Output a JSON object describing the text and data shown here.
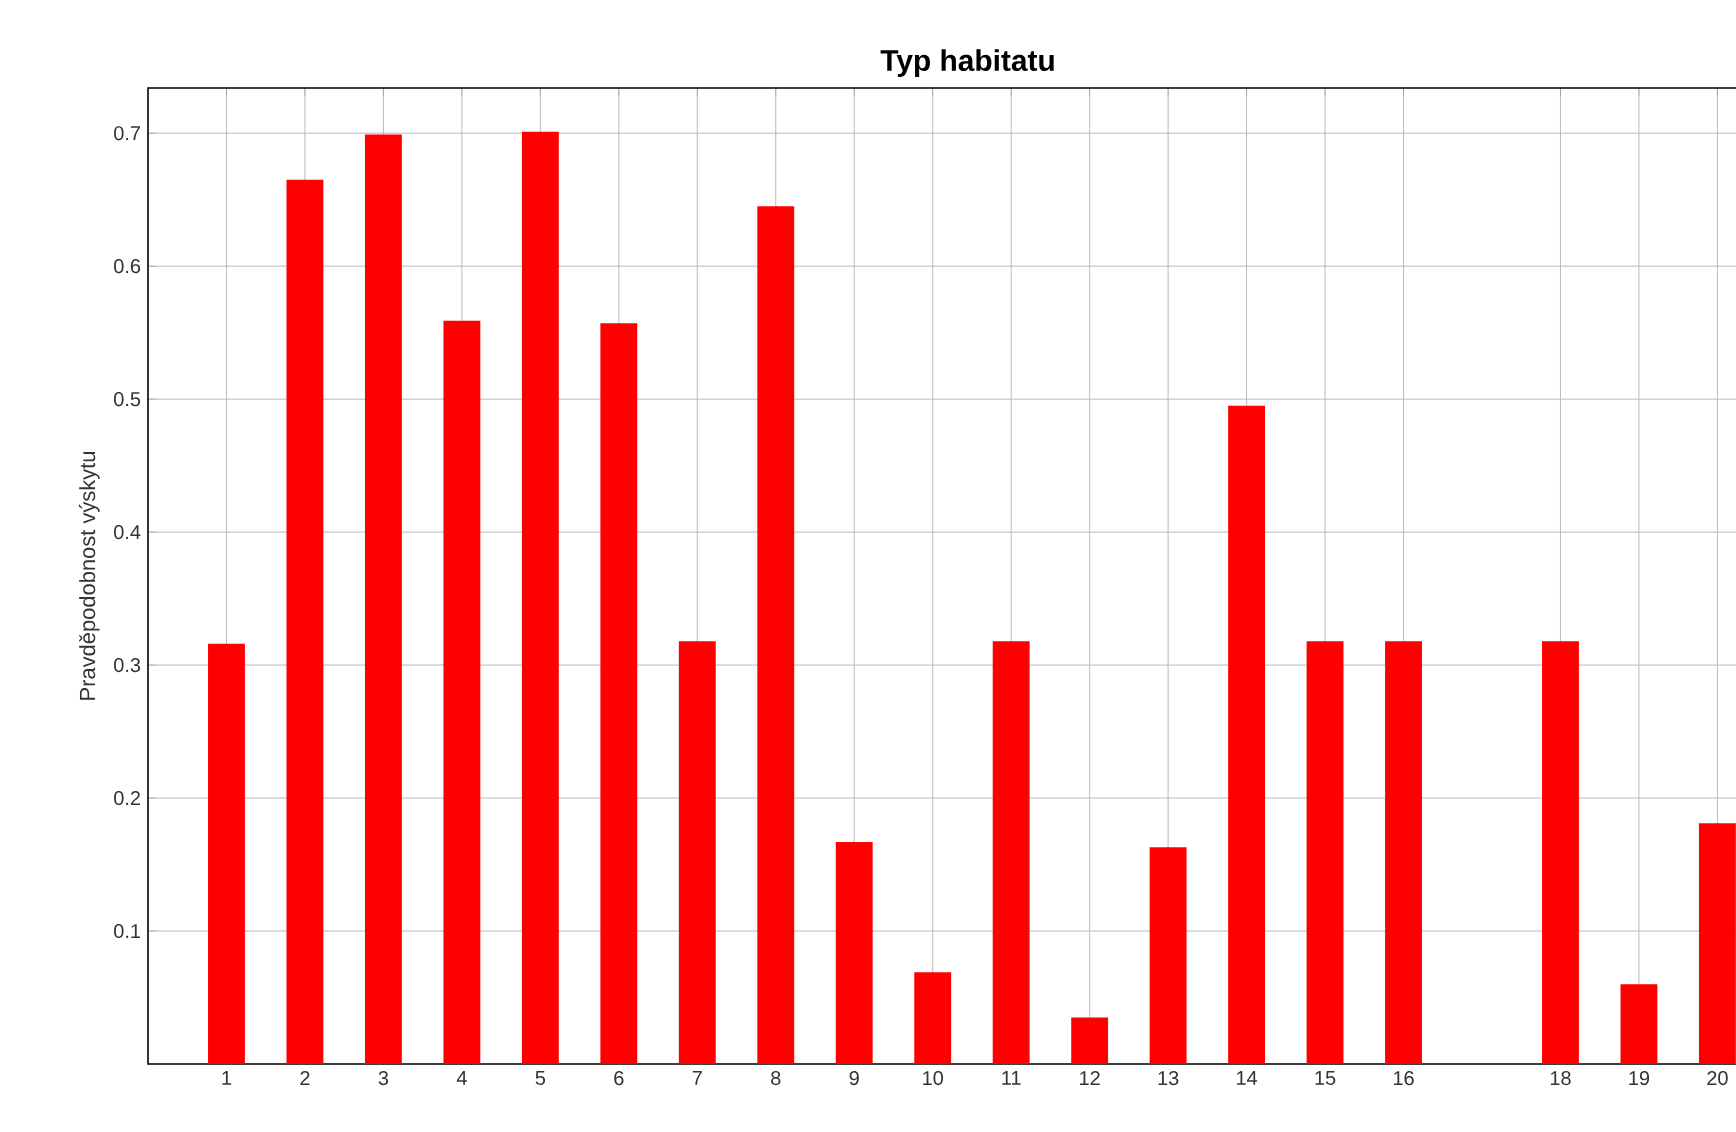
{
  "chart_data": {
    "type": "bar",
    "title": "**Typ habitatu**",
    "ylabel": "Pravděpodobnost výskytu",
    "x": [
      1,
      2,
      3,
      4,
      5,
      6,
      7,
      8,
      9,
      10,
      11,
      12,
      13,
      14,
      15,
      16,
      18,
      19,
      20
    ],
    "values": [
      0.316,
      0.665,
      0.699,
      0.559,
      0.701,
      0.557,
      0.318,
      0.645,
      0.167,
      0.069,
      0.318,
      0.035,
      0.163,
      0.495,
      0.318,
      0.318,
      0.318,
      0.06,
      0.181
    ],
    "color": "#ff0000",
    "xlim": [
      0,
      20.9
    ],
    "ylim": [
      0,
      0.734
    ],
    "xticks": [
      1,
      2,
      3,
      4,
      5,
      6,
      7,
      8,
      9,
      10,
      11,
      12,
      13,
      14,
      15,
      16,
      18,
      19,
      20
    ],
    "yticks": [
      0.1,
      0.2,
      0.3,
      0.4,
      0.5,
      0.6,
      0.7
    ],
    "grid": true
  }
}
